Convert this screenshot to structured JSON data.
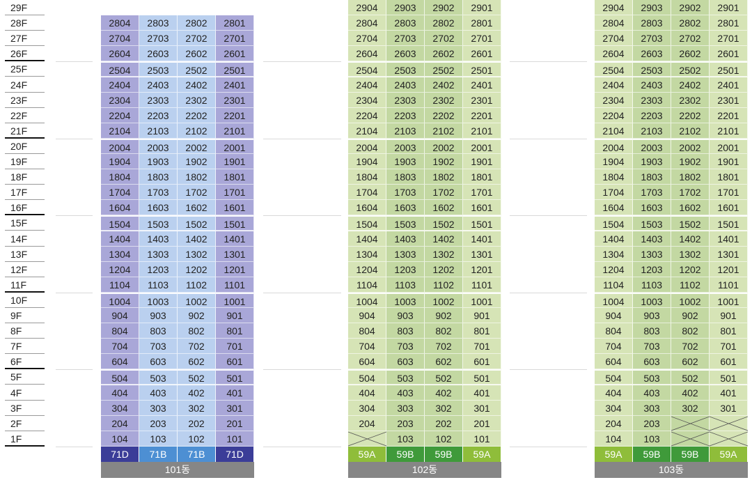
{
  "floors": [
    "29F",
    "28F",
    "27F",
    "26F",
    "25F",
    "24F",
    "23F",
    "22F",
    "21F",
    "20F",
    "19F",
    "18F",
    "17F",
    "16F",
    "15F",
    "14F",
    "13F",
    "12F",
    "11F",
    "10F",
    "9F",
    "8F",
    "7F",
    "6F",
    "5F",
    "4F",
    "3F",
    "2F",
    "1F"
  ],
  "colors": {
    "b101_a": "#a9a7d8",
    "b101_b": "#bad0ef",
    "b10x_a": "#d6e4b6",
    "b10x_b": "#c3d8a2",
    "t71D": "#3b3d98",
    "t71B": "#4d8fd3",
    "t59A": "#8fbd3a",
    "t59B": "#3f9a3a",
    "building_label": "#868686"
  },
  "buildings": [
    {
      "name": "101동",
      "top_floor": 28,
      "column_style": [
        "a",
        "b",
        "b",
        "a"
      ],
      "empty_units": [],
      "types": [
        "71D",
        "71B",
        "71B",
        "71D"
      ]
    },
    {
      "name": "102동",
      "top_floor": 29,
      "column_style": [
        "a",
        "b",
        "b",
        "a"
      ],
      "empty_units": [
        "104"
      ],
      "types": [
        "59A",
        "59B",
        "59B",
        "59A"
      ]
    },
    {
      "name": "103동",
      "top_floor": 29,
      "column_style": [
        "a",
        "b",
        "b",
        "a"
      ],
      "empty_units": [
        "202",
        "201",
        "102",
        "101"
      ],
      "types": [
        "59A",
        "59B",
        "59B",
        "59A"
      ]
    }
  ]
}
